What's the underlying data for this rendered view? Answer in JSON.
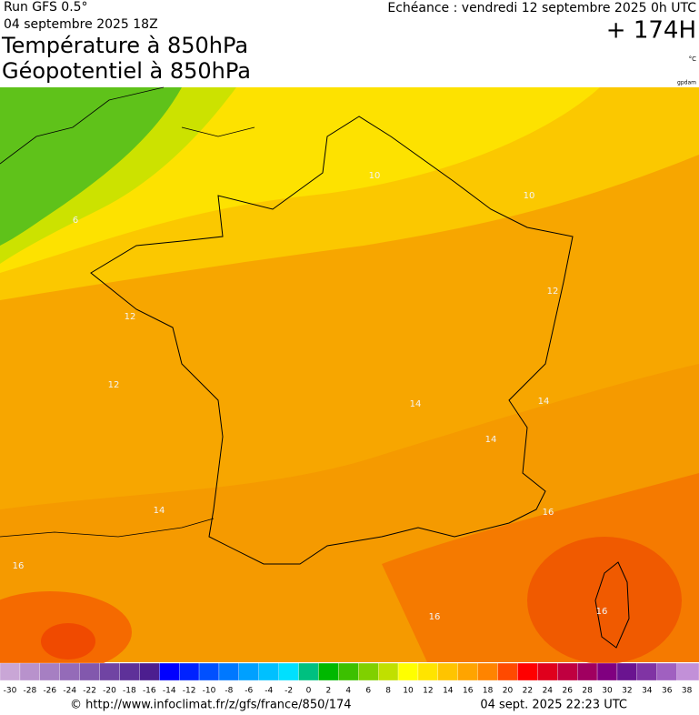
{
  "header": {
    "run": "Run GFS 0.5°",
    "date": "04 septembre 2025 18Z",
    "title_1": "Température à 850hPa",
    "title_2": "Géopotentiel à 850hPa",
    "echeance": "Echéance : vendredi 12 septembre 2025 0h UTC",
    "lead": "+ 174H",
    "unit": "°C",
    "source_tag": "gpdam"
  },
  "contour_labels": [
    "6",
    "12",
    "12",
    "14",
    "16",
    "16",
    "16",
    "16",
    "14",
    "14",
    "14",
    "12",
    "10",
    "10"
  ],
  "colorbar": {
    "labels": [
      -30,
      -28,
      -26,
      -24,
      -22,
      -20,
      -18,
      -16,
      -14,
      -12,
      -10,
      -8,
      -6,
      -4,
      -2,
      0,
      2,
      4,
      6,
      8,
      10,
      12,
      14,
      16,
      18,
      20,
      22,
      24,
      26,
      28,
      30,
      32,
      34,
      36,
      38
    ],
    "colors": [
      "#c9a6d6",
      "#b892cc",
      "#a67fc2",
      "#946bb8",
      "#8258ad",
      "#7044a3",
      "#5e3199",
      "#4c1e8f",
      "#0000ff",
      "#0022ff",
      "#0050ff",
      "#0078ff",
      "#00a0ff",
      "#00c0ff",
      "#00e0ff",
      "#00c080",
      "#00b800",
      "#3cc000",
      "#80d000",
      "#c0e000",
      "#ffff00",
      "#ffe400",
      "#ffc400",
      "#ffa400",
      "#ff8400",
      "#ff4a00",
      "#ff0000",
      "#e0001c",
      "#c00040",
      "#a00060",
      "#800080",
      "#6a1490",
      "#8034a4",
      "#a060c0",
      "#c290d8"
    ]
  },
  "footer": {
    "url": "© http://www.infoclimat.fr/z/gfs/france/850/174",
    "stamp": "04 sept. 2025 22:23 UTC"
  }
}
